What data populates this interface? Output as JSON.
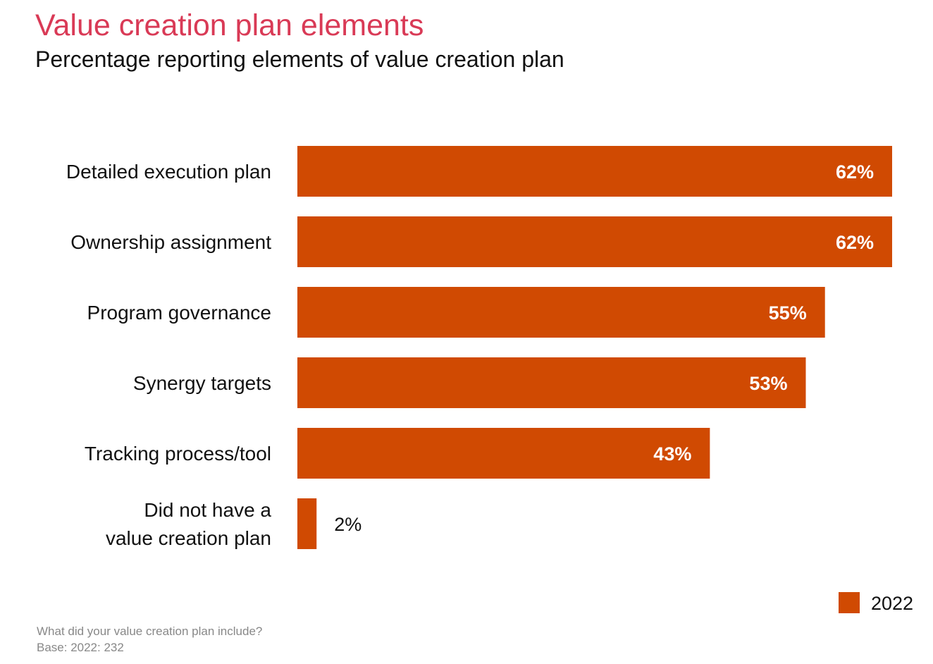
{
  "title": "Value creation plan elements",
  "subtitle": "Percentage reporting elements of value creation plan",
  "footnote": {
    "question": "What did your value creation plan include?",
    "base": "Base: 2022: 232"
  },
  "colors": {
    "bar": "#d04a02",
    "title": "#d93a56"
  },
  "chart_data": {
    "type": "bar",
    "orientation": "horizontal",
    "categories": [
      [
        "Detailed execution plan"
      ],
      [
        "Ownership assignment"
      ],
      [
        "Program governance"
      ],
      [
        "Synergy targets"
      ],
      [
        "Tracking process/tool"
      ],
      [
        "Did not have a",
        "value creation plan"
      ]
    ],
    "series": [
      {
        "name": "2022",
        "values": [
          62,
          62,
          55,
          53,
          43,
          2
        ]
      }
    ],
    "value_labels": [
      "62%",
      "62%",
      "55%",
      "53%",
      "43%",
      "2%"
    ],
    "xlim": [
      0,
      62
    ],
    "grid": false,
    "legend": {
      "position": "bottom-right",
      "entries": [
        "2022"
      ]
    }
  }
}
